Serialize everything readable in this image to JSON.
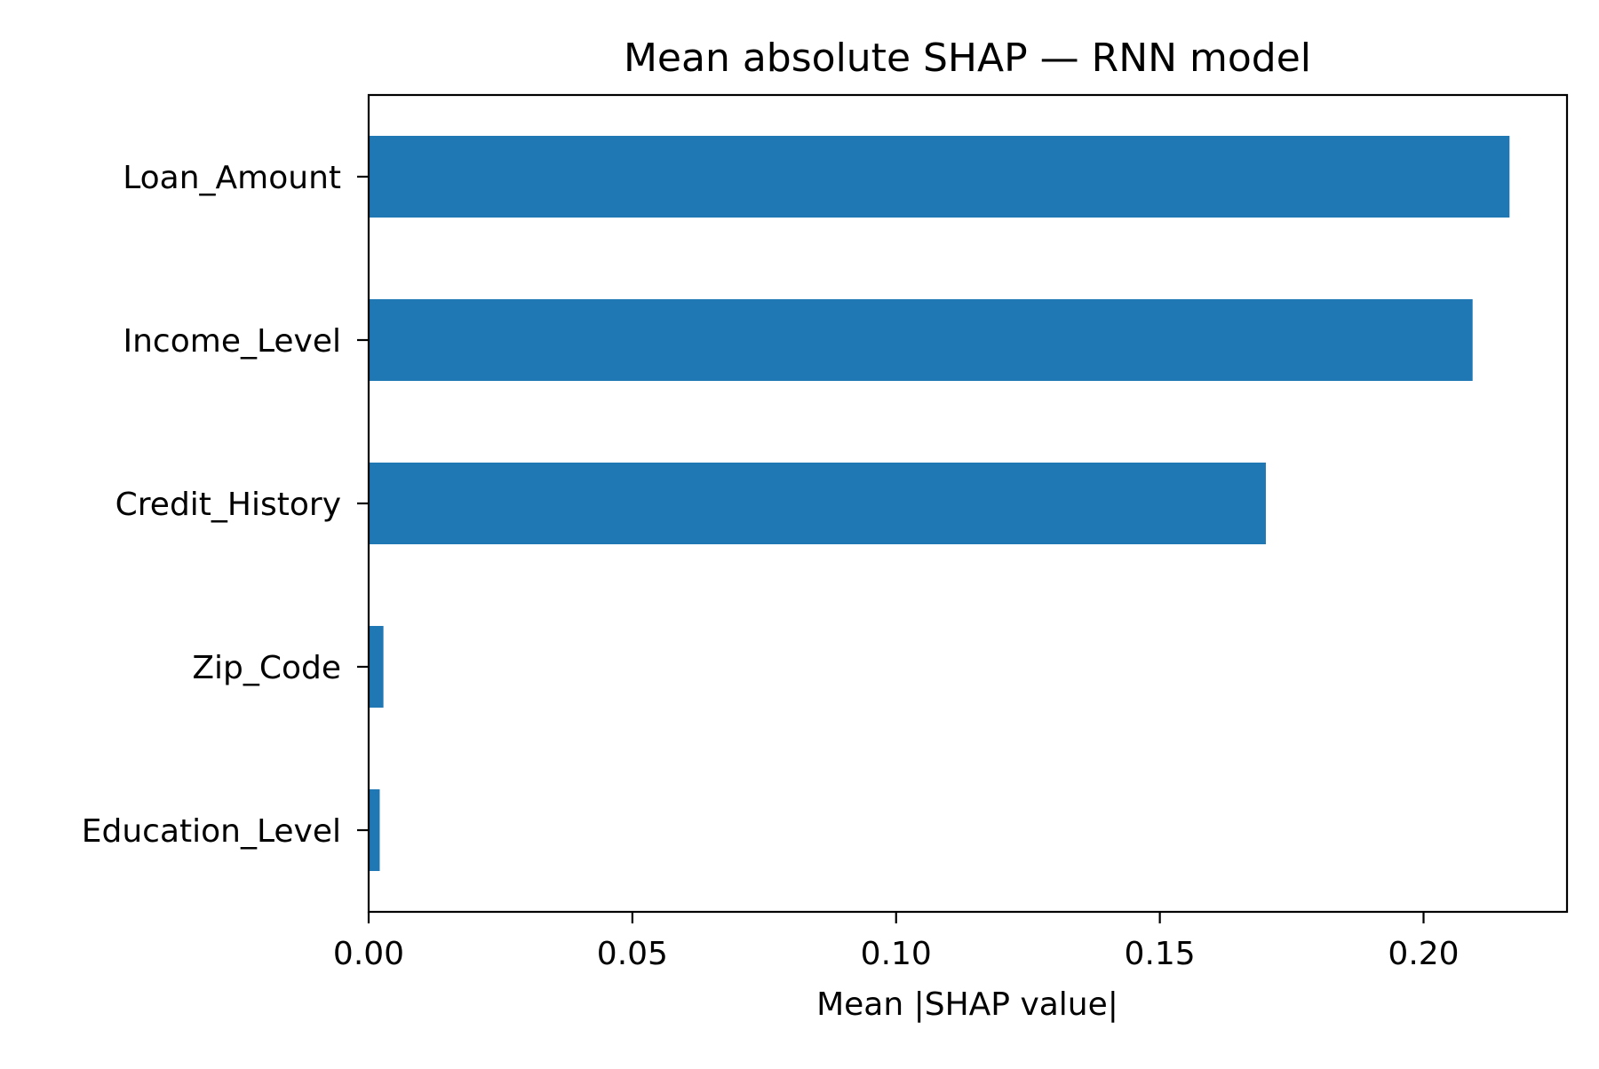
{
  "chart_data": {
    "type": "bar",
    "orientation": "horizontal",
    "title": "Mean absolute SHAP — RNN model",
    "xlabel": "Mean |SHAP value|",
    "ylabel": "",
    "categories": [
      "Loan_Amount",
      "Income_Level",
      "Credit_History",
      "Zip_Code",
      "Education_Level"
    ],
    "values": [
      0.2163,
      0.2093,
      0.1701,
      0.0028,
      0.0021
    ],
    "xlim": [
      0.0,
      0.2272
    ],
    "xticks": [
      0.0,
      0.05,
      0.1,
      0.15,
      0.2
    ],
    "xtick_labels": [
      "0.00",
      "0.05",
      "0.10",
      "0.15",
      "0.20"
    ],
    "bar_color": "#1f77b4",
    "grid": false,
    "legend": "none"
  }
}
